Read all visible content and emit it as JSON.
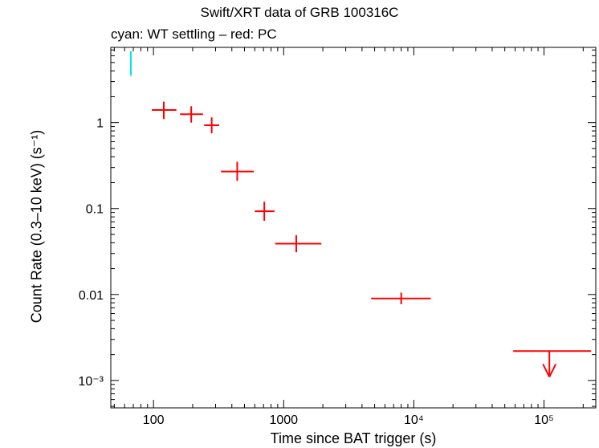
{
  "chart_data": {
    "type": "scatter",
    "title": "Swift/XRT data of GRB 100316C",
    "subtitle": "cyan: WT settling – red: PC",
    "xlabel": "Time since BAT trigger (s)",
    "ylabel": "Count Rate (0.3–10 keV) (s⁻¹)",
    "xscale": "log",
    "yscale": "log",
    "xlim": [
      47,
      250000
    ],
    "ylim": [
      0.00048,
      7.5
    ],
    "x_ticks": [
      {
        "value": 100,
        "label": "100"
      },
      {
        "value": 1000,
        "label": "1000"
      },
      {
        "value": 10000,
        "label": "10⁴"
      },
      {
        "value": 100000,
        "label": "10⁵"
      }
    ],
    "y_ticks": [
      {
        "value": 1,
        "label": "1"
      },
      {
        "value": 0.1,
        "label": "0.1"
      },
      {
        "value": 0.01,
        "label": "0.01"
      },
      {
        "value": 0.001,
        "label": "10⁻³"
      }
    ],
    "series": [
      {
        "color": "#00e5ee",
        "points": [
          {
            "x": 67,
            "y": 5.0,
            "xerr": [
              66,
              68
            ],
            "yerr": [
              3.5,
              6.8
            ]
          }
        ]
      },
      {
        "color": "#ff0000",
        "points": [
          {
            "x": 120,
            "y": 1.4,
            "xerr": [
              97,
              150
            ],
            "yerr": [
              1.1,
              1.75
            ]
          },
          {
            "x": 195,
            "y": 1.25,
            "xerr": [
              160,
              240
            ],
            "yerr": [
              1.0,
              1.55
            ]
          },
          {
            "x": 280,
            "y": 0.93,
            "xerr": [
              245,
              320
            ],
            "yerr": [
              0.75,
              1.15
            ]
          },
          {
            "x": 440,
            "y": 0.27,
            "xerr": [
              330,
              590
            ],
            "yerr": [
              0.21,
              0.35
            ]
          },
          {
            "x": 710,
            "y": 0.093,
            "xerr": [
              600,
              850
            ],
            "yerr": [
              0.072,
              0.12
            ]
          },
          {
            "x": 1250,
            "y": 0.039,
            "xerr": [
              860,
              1950
            ],
            "yerr": [
              0.031,
              0.049
            ]
          },
          {
            "x": 8000,
            "y": 0.009,
            "xerr": [
              4700,
              13500
            ],
            "yerr": [
              0.0077,
              0.0105
            ]
          }
        ]
      },
      {
        "color": "#ff0000",
        "upper_limits": [
          {
            "x": 110000,
            "y": 0.0022,
            "xerr": [
              58000,
              230000
            ],
            "arrow_to": 0.0011
          }
        ]
      }
    ]
  }
}
